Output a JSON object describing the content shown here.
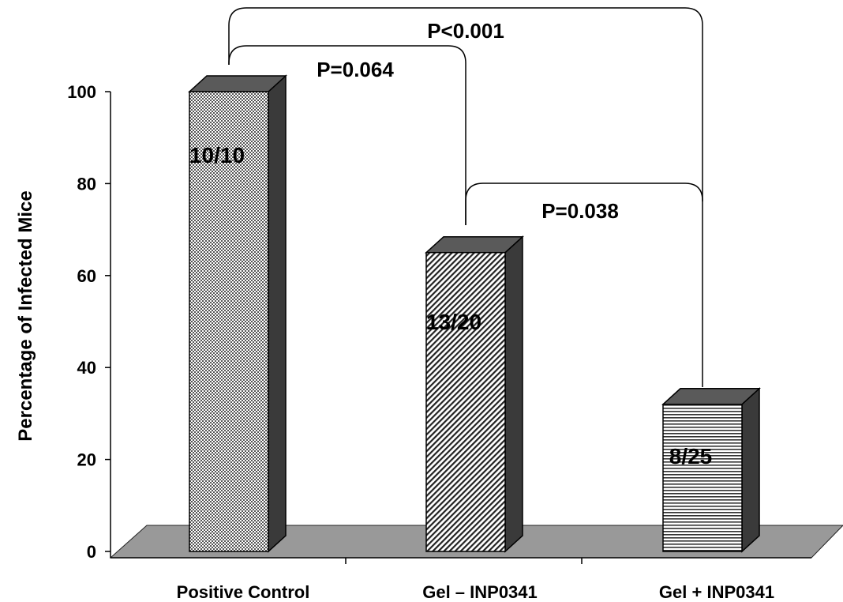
{
  "chart_data": {
    "type": "bar",
    "style": "3d",
    "title": "",
    "xlabel": "",
    "ylabel": "Percentage of Infected Mice",
    "ylim": [
      0,
      100
    ],
    "yticks": [
      "0",
      "20",
      "40",
      "60",
      "80",
      "100"
    ],
    "categories": [
      "Positive Control",
      "Gel – INP0341",
      "Gel + INP0341"
    ],
    "values": [
      100,
      65,
      32
    ],
    "data_labels": [
      "10/10",
      "13/20",
      "8/25"
    ],
    "bar_patterns": [
      "checker",
      "diagonal",
      "horizontal"
    ],
    "grid": false,
    "legend": "none",
    "annotations": [
      {
        "text": "P<0.001",
        "from": "Positive Control",
        "to": "Gel + INP0341"
      },
      {
        "text": "P=0.064",
        "from": "Positive Control",
        "to": "Gel – INP0341"
      },
      {
        "text": "P=0.038",
        "from": "Gel – INP0341",
        "to": "Gel + INP0341"
      }
    ],
    "colors": {
      "bar_side": "#3a3a3a",
      "bar_top": "#5a5a5a",
      "floor": "#9a9a9a",
      "axis": "#000000"
    }
  }
}
